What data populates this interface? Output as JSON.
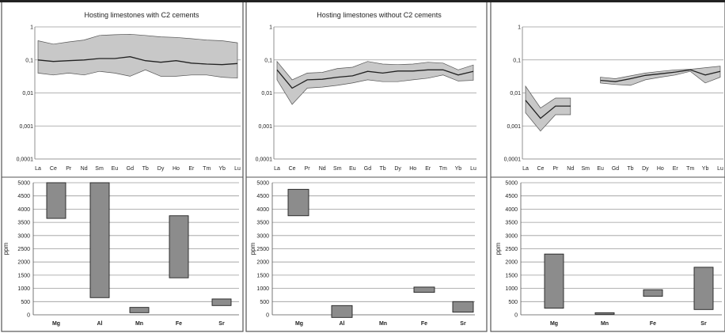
{
  "chart_data": [
    {
      "type": "area",
      "title": "Hosting limestones with C2 cements",
      "yscale": "log",
      "ylim": [
        0.0001,
        1
      ],
      "yticks": [
        "1",
        "0,1",
        "0,01",
        "0,001",
        "0,0001"
      ],
      "categories": [
        "La",
        "Ce",
        "Pr",
        "Nd",
        "Sm",
        "Eu",
        "Gd",
        "Tb",
        "Dy",
        "Ho",
        "Er",
        "Tm",
        "Yb",
        "Lu"
      ],
      "series": [
        {
          "role": "max",
          "values": [
            0.38,
            0.3,
            0.35,
            0.4,
            0.55,
            0.58,
            0.6,
            0.55,
            0.5,
            0.48,
            0.44,
            0.4,
            0.38,
            0.33
          ]
        },
        {
          "role": "mean",
          "values": [
            0.1,
            0.09,
            0.095,
            0.1,
            0.11,
            0.11,
            0.125,
            0.095,
            0.085,
            0.095,
            0.08,
            0.075,
            0.072,
            0.078
          ]
        },
        {
          "role": "min",
          "values": [
            0.04,
            0.035,
            0.04,
            0.035,
            0.045,
            0.04,
            0.032,
            0.05,
            0.032,
            0.032,
            0.035,
            0.035,
            0.03,
            0.028
          ]
        }
      ],
      "colors": {
        "band": "#c8c8c8",
        "line": "#222222"
      }
    },
    {
      "type": "area",
      "title": "Hosting limestones without C2 cements",
      "yscale": "log",
      "ylim": [
        0.0001,
        1
      ],
      "yticks": [
        "1",
        "0,1",
        "0,01",
        "0,001",
        "0,0001"
      ],
      "categories": [
        "La",
        "Ce",
        "Pr",
        "Nd",
        "Sm",
        "Eu",
        "Gd",
        "Tb",
        "Dy",
        "Ho",
        "Er",
        "Tm",
        "Yb",
        "Lu"
      ],
      "series": [
        {
          "role": "max",
          "values": [
            0.09,
            0.025,
            0.04,
            0.042,
            0.055,
            0.06,
            0.09,
            0.075,
            0.072,
            0.075,
            0.085,
            0.08,
            0.05,
            0.07
          ]
        },
        {
          "role": "mean",
          "values": [
            0.05,
            0.014,
            0.025,
            0.026,
            0.03,
            0.033,
            0.045,
            0.04,
            0.046,
            0.046,
            0.05,
            0.05,
            0.035,
            0.045
          ]
        },
        {
          "role": "min",
          "values": [
            0.025,
            0.0045,
            0.014,
            0.015,
            0.017,
            0.02,
            0.025,
            0.022,
            0.022,
            0.025,
            0.028,
            0.035,
            0.023,
            0.024
          ]
        }
      ],
      "colors": {
        "band": "#c8c8c8",
        "line": "#222222"
      }
    },
    {
      "type": "area",
      "title": "",
      "yscale": "log",
      "ylim": [
        0.0001,
        1
      ],
      "yticks": [
        "1",
        "0,1",
        "0,01",
        "0,001",
        "0,0001"
      ],
      "categories": [
        "La",
        "Ce",
        "Pr",
        "Nd",
        "Sm",
        "Eu",
        "Gd",
        "Tb",
        "Dy",
        "Ho",
        "Er",
        "Tm",
        "Yb",
        "Lu"
      ],
      "segments": [
        {
          "start": 0,
          "max": [
            0.016,
            0.0035,
            0.007,
            0.007
          ],
          "mean": [
            0.006,
            0.0017,
            0.004,
            0.004
          ],
          "min": [
            0.0025,
            0.0007,
            0.0022,
            0.0022
          ]
        },
        {
          "start": 5,
          "max": [
            0.03,
            0.027,
            0.033,
            0.04,
            0.045,
            0.05,
            0.052,
            0.058,
            0.065
          ],
          "mean": [
            0.024,
            0.022,
            0.027,
            0.034,
            0.038,
            0.043,
            0.05,
            0.035,
            0.045
          ],
          "min": [
            0.02,
            0.018,
            0.017,
            0.025,
            0.03,
            0.035,
            0.045,
            0.02,
            0.03
          ]
        }
      ],
      "colors": {
        "band": "#c8c8c8",
        "line": "#222222"
      }
    },
    {
      "type": "bar",
      "subtype": "floating-range",
      "ylabel": "ppm",
      "ylim": [
        0,
        5000
      ],
      "yticks": [
        0,
        500,
        1000,
        1500,
        2000,
        2500,
        3000,
        3500,
        4000,
        4500,
        5000
      ],
      "categories": [
        "Mg",
        "Al",
        "Mn",
        "Fe",
        "Sr"
      ],
      "ranges": [
        [
          3650,
          5000
        ],
        [
          650,
          5000
        ],
        [
          80,
          280
        ],
        [
          1400,
          3750
        ],
        [
          350,
          600
        ]
      ],
      "colors": {
        "bar": "#8c8c8c"
      }
    },
    {
      "type": "bar",
      "subtype": "floating-range",
      "ylabel": "ppm",
      "ylim": [
        0,
        5000
      ],
      "yticks": [
        0,
        500,
        1000,
        1500,
        2000,
        2500,
        3000,
        3500,
        4000,
        4500,
        5000
      ],
      "categories": [
        "Mg",
        "Al",
        "Mn",
        "Fe",
        "Sr"
      ],
      "ranges": [
        [
          3750,
          4750
        ],
        [
          -100,
          350
        ],
        null,
        [
          850,
          1050
        ],
        [
          100,
          500
        ]
      ],
      "colors": {
        "bar": "#8c8c8c"
      }
    },
    {
      "type": "bar",
      "subtype": "floating-range",
      "ylabel": "ppm",
      "ylim": [
        0,
        5000
      ],
      "yticks": [
        0,
        500,
        1000,
        1500,
        2000,
        2500,
        3000,
        3500,
        4000,
        4500,
        5000
      ],
      "categories": [
        "Mg",
        "Mn",
        "Fe",
        "Sr"
      ],
      "ranges": [
        [
          250,
          2300
        ],
        [
          20,
          80
        ],
        [
          700,
          950
        ],
        [
          200,
          1800
        ]
      ],
      "colors": {
        "bar": "#8c8c8c"
      }
    }
  ]
}
